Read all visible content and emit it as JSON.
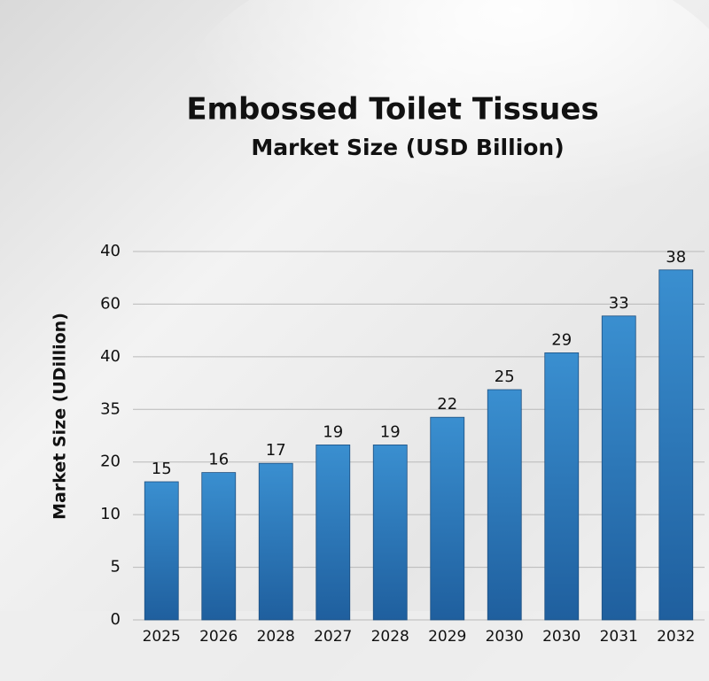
{
  "chart_data": {
    "type": "bar",
    "title": "Embossed Toilet Tissues",
    "subtitle": "Market Size (USD Billion)",
    "y_axis_title": "Market Size (UDillion)",
    "categories": [
      "2025",
      "2026",
      "2028",
      "2027",
      "2028",
      "2029",
      "2030",
      "2030",
      "2031",
      "2032"
    ],
    "values": [
      15,
      16,
      17,
      19,
      19,
      22,
      25,
      29,
      33,
      38
    ],
    "color": "#3a8fd0",
    "ylim": [
      0,
      40
    ],
    "y_axis_labels": [
      "40",
      "60",
      "40",
      "35",
      "20",
      "10",
      "5",
      "0"
    ],
    "grid": true
  }
}
